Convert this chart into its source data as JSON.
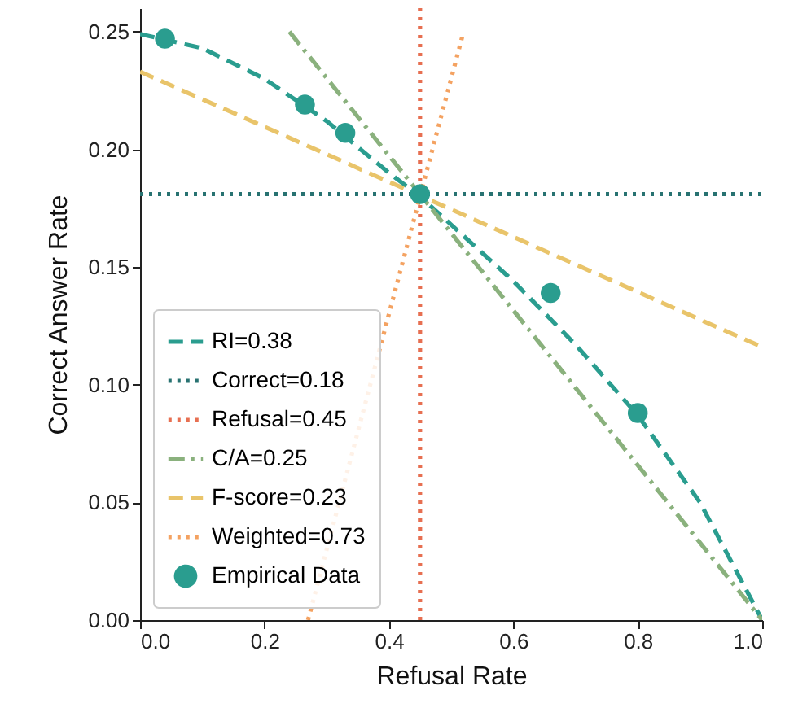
{
  "chart_data": {
    "type": "line",
    "xlabel": "Refusal Rate",
    "ylabel": "Correct Answer Rate",
    "xlim": [
      0,
      1
    ],
    "ylim": [
      0,
      0.26
    ],
    "xticks": [
      {
        "value": 0,
        "label": "0.0"
      },
      0.2,
      0.4,
      0.6,
      0.8,
      {
        "value": 1,
        "label": "1.0"
      }
    ],
    "yticks": [
      {
        "value": 0,
        "label": "0.00"
      },
      0.05,
      {
        "value": 0.1,
        "label": "0.10"
      },
      0.15,
      {
        "value": 0.2,
        "label": "0.20"
      },
      0.25
    ],
    "grid": false,
    "legend": "bottom left",
    "series": [
      {
        "name": "RI=0.38",
        "type": "line",
        "line_style": "dashed",
        "color": "#2a9d8f",
        "x": [
          0,
          0.1,
          0.2,
          0.3,
          0.4,
          0.45,
          0.5,
          0.6,
          0.7,
          0.8,
          0.9,
          1.0
        ],
        "values": [
          0.249,
          0.243,
          0.23,
          0.212,
          0.19,
          0.18,
          0.168,
          0.144,
          0.117,
          0.087,
          0.05,
          0
        ]
      },
      {
        "name": "Correct=0.18",
        "type": "line",
        "line_style": "dotted",
        "color": "#287271",
        "x": [
          0,
          1
        ],
        "values": [
          0.181,
          0.181
        ]
      },
      {
        "name": "Refusal=0.45",
        "type": "line",
        "line_style": "dotted",
        "color": "#e76f51",
        "x": [
          0.45,
          0.45
        ],
        "values": [
          0,
          0.26
        ]
      },
      {
        "name": "C/A=0.25",
        "type": "line",
        "line_style": "dashdot",
        "color": "#8ab17d",
        "x": [
          0.24,
          1
        ],
        "values": [
          0.25,
          0
        ]
      },
      {
        "name": "F-score=0.23",
        "type": "line",
        "line_style": "dashed",
        "color": "#e9c46a",
        "x": [
          0,
          1
        ],
        "values": [
          0.233,
          0.116
        ]
      },
      {
        "name": "Weighted=0.73",
        "type": "line",
        "line_style": "dotted",
        "color": "#f4a261",
        "x": [
          0.27,
          0.52
        ],
        "values": [
          0,
          0.25
        ]
      },
      {
        "name": "Empirical Data",
        "type": "scatter",
        "marker": "circle",
        "color": "#2a9d8f",
        "x": [
          0.04,
          0.265,
          0.33,
          0.45,
          0.66,
          0.8
        ],
        "values": [
          0.247,
          0.219,
          0.207,
          0.181,
          0.139,
          0.088
        ]
      }
    ]
  }
}
